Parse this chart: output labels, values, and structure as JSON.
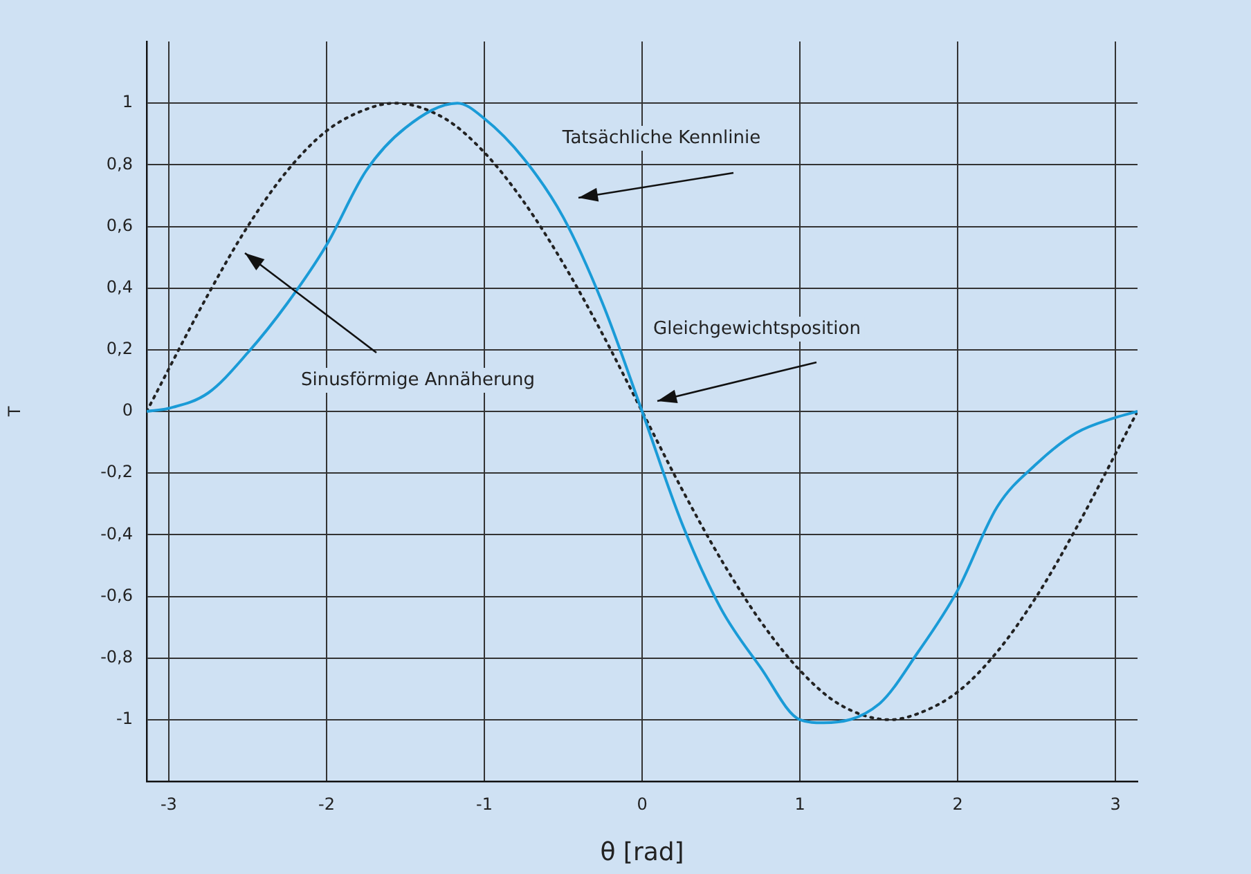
{
  "chart_data": {
    "type": "line",
    "xlabel": "θ [rad]",
    "ylabel": "T",
    "xlim": [
      -3.14,
      3.14
    ],
    "xticks": [
      -3,
      -2,
      -1,
      0,
      1,
      2,
      3
    ],
    "ylim": [
      -1.2,
      1.2
    ],
    "yticks": [
      {
        "value": -1,
        "label": "-1"
      },
      {
        "value": -0.8,
        "label": "-0,8"
      },
      {
        "value": -0.6,
        "label": "-0,6"
      },
      {
        "value": -0.4,
        "label": "-0,4"
      },
      {
        "value": -0.2,
        "label": "-0,2"
      },
      {
        "value": 0,
        "label": "0"
      },
      {
        "value": 0.2,
        "label": "0,2"
      },
      {
        "value": 0.4,
        "label": "0,4"
      },
      {
        "value": 0.6,
        "label": "0,6"
      },
      {
        "value": 0.8,
        "label": "0,8"
      },
      {
        "value": 1,
        "label": "1"
      }
    ],
    "grid": true,
    "legend": false,
    "marker": "none",
    "series": [
      {
        "color": "#1a9bd7",
        "line_style": "solid",
        "x": [
          -3.14,
          -3,
          -2.75,
          -2.5,
          -2.25,
          -2,
          -1.75,
          -1.5,
          -1.17,
          -1,
          -0.75,
          -0.5,
          -0.25,
          0,
          0.25,
          0.5,
          0.75,
          1,
          1.15,
          1.5,
          1.75,
          2,
          2.25,
          2.5,
          2.75,
          3,
          3.14
        ],
        "values": [
          0,
          0.01,
          0.06,
          0.19,
          0.35,
          0.54,
          0.78,
          0.92,
          1,
          0.95,
          0.82,
          0.63,
          0.35,
          0,
          -0.36,
          -0.64,
          -0.83,
          -1,
          -1.01,
          -0.95,
          -0.78,
          -0.58,
          -0.31,
          -0.17,
          -0.07,
          -0.02,
          0
        ]
      },
      {
        "color": "#222222",
        "line_style": "dotted",
        "x": [
          -3.14,
          -2.75,
          -2.5,
          -2.25,
          -2,
          -1.75,
          -1.57,
          -1.25,
          -1,
          -0.75,
          -0.5,
          -0.25,
          0,
          0.25,
          0.5,
          0.75,
          1,
          1.25,
          1.57,
          1.75,
          2,
          2.25,
          2.5,
          2.75,
          3.14
        ],
        "values": [
          0,
          0.38,
          0.6,
          0.78,
          0.91,
          0.98,
          1,
          0.95,
          0.84,
          0.68,
          0.48,
          0.25,
          0,
          -0.25,
          -0.48,
          -0.68,
          -0.84,
          -0.95,
          -1,
          -0.98,
          -0.91,
          -0.78,
          -0.6,
          -0.38,
          0
        ]
      }
    ],
    "annotations": [
      "Tatsächliche Kennlinie",
      "Sinusförmige Annäherung",
      "Gleichgewichtsposition"
    ]
  }
}
